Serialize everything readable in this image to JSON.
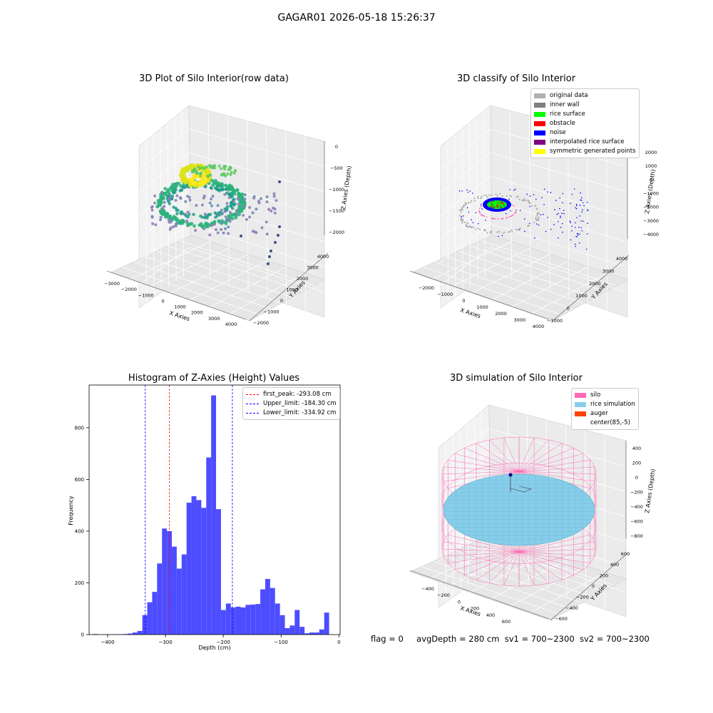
{
  "figure": {
    "title": "GAGAR01 2026-05-18 15:26:37",
    "status": {
      "flag": "flag = 0",
      "avg_depth": "avgDepth = 280 cm",
      "sv1": "sv1 = 700~2300",
      "sv2": "sv2 = 700~2300"
    }
  },
  "chart_data": [
    {
      "type": "scatter",
      "subtype": "3d",
      "title": "3D Plot of Silo Interior(row data)",
      "xlabel": "X Axies",
      "ylabel": "Y Axies",
      "zlabel": "Z Axies (Depth)",
      "xticks": [
        "−3000",
        "−2000",
        "−1000",
        "0",
        "1000",
        "2000",
        "3000",
        "4000"
      ],
      "yticks": [
        "−2000",
        "−1000",
        "0",
        "1000",
        "2000",
        "3000",
        "4000"
      ],
      "zticks": [
        "0",
        "−500",
        "−1000",
        "−1500",
        "−2000"
      ],
      "colormap": "viridis (colored by depth)"
    },
    {
      "type": "scatter",
      "subtype": "3d",
      "title": "3D classify of Silo Interior",
      "xlabel": "X Axies",
      "ylabel": "Y Axies",
      "zlabel": "Z Axies (Depth)",
      "xticks": [
        "−2000",
        "−1000",
        "0",
        "1000",
        "2000",
        "3000",
        "4000"
      ],
      "yticks": [
        "−1000",
        "0",
        "1000",
        "2000",
        "3000",
        "4000"
      ],
      "zticks": [
        "2000",
        "1000",
        "0",
        "−1000",
        "−2000",
        "−3000",
        "−4000"
      ],
      "legend": [
        {
          "label": "original data",
          "color": "#b0b0b0"
        },
        {
          "label": "inner wall",
          "color": "#808080"
        },
        {
          "label": "rice surface",
          "color": "#00ff00"
        },
        {
          "label": "obstacle",
          "color": "#ff0000"
        },
        {
          "label": "noise",
          "color": "#0000ff"
        },
        {
          "label": "interpolated rice surface",
          "color": "#800080"
        },
        {
          "label": "symmetric generated points",
          "color": "#ffff00"
        }
      ]
    },
    {
      "type": "bar",
      "subtype": "histogram",
      "title": "Histogram of Z-Axies (Height) Values",
      "xlabel": "Depth (cm)",
      "ylabel": "Frequency",
      "xlim": [
        -432,
        2
      ],
      "ylim": [
        0,
        965
      ],
      "xticks": [
        -400,
        -300,
        -200,
        -100,
        0
      ],
      "yticks": [
        0,
        200,
        400,
        600,
        800
      ],
      "tick_labels_x": [
        "−400",
        "−300",
        "−200",
        "−100",
        "0"
      ],
      "tick_labels_y": [
        "0",
        "200",
        "400",
        "600",
        "800"
      ],
      "bin_width": 8.5,
      "bin_start": -425,
      "color": "#4d4dff",
      "values": [
        2,
        0,
        0,
        1,
        1,
        0,
        2,
        4,
        8,
        14,
        75,
        125,
        165,
        275,
        410,
        400,
        340,
        255,
        310,
        510,
        535,
        520,
        490,
        685,
        925,
        485,
        95,
        120,
        105,
        108,
        105,
        115,
        116,
        118,
        175,
        215,
        180,
        120,
        75,
        25,
        35,
        95,
        30,
        5,
        8,
        8,
        20,
        85
      ],
      "lines": [
        {
          "label": "first_peak: -293.08 cm",
          "x": -293.08,
          "color": "#ff0000"
        },
        {
          "label": "Upper_limit: -184.30 cm",
          "x": -184.3,
          "color": "#0000ff"
        },
        {
          "label": "Lower_limit: -334.92 cm",
          "x": -334.92,
          "color": "#0000ff"
        }
      ],
      "legend_position": "top-right"
    },
    {
      "type": "scatter",
      "subtype": "3d surface",
      "title": "3D simulation of Silo Interior",
      "xlabel": "X Axies",
      "ylabel": "Y Axies",
      "zlabel": "Z Axies (Depth)",
      "xticks": [
        "−400",
        "−200",
        "0",
        "200",
        "400",
        "600"
      ],
      "yticks": [
        "−600",
        "−400",
        "−200",
        "0",
        "200",
        "400",
        "600"
      ],
      "zticks": [
        "400",
        "200",
        "0",
        "−200",
        "−400",
        "−600",
        "−800"
      ],
      "legend": [
        {
          "label": "silo",
          "color": "#ff69b4"
        },
        {
          "label": "rice simulation",
          "color": "#87ceeb"
        },
        {
          "label": "auger",
          "color": "#ff4500"
        },
        {
          "label": "center(85,-5)",
          "color": "#ffffff"
        }
      ]
    }
  ]
}
